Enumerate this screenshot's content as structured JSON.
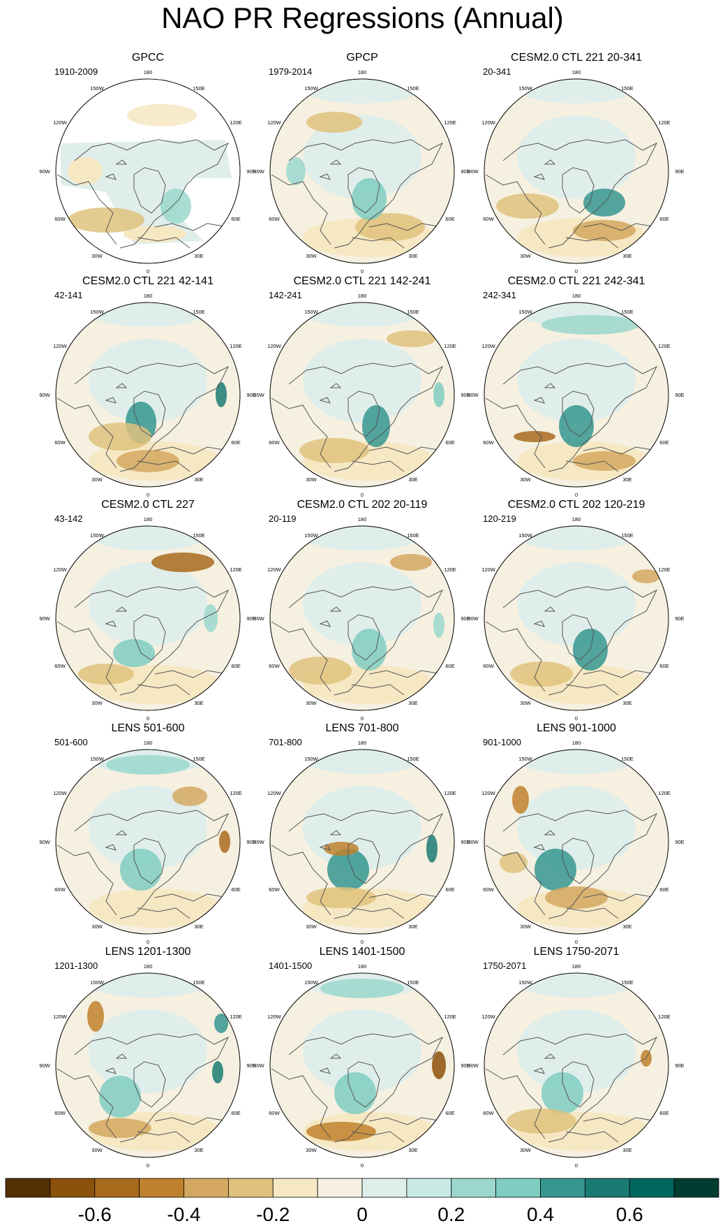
{
  "title": "NAO PR Regressions (Annual)",
  "colors": {
    "palette": [
      "#543005",
      "#8c510a",
      "#a86a1d",
      "#bf812d",
      "#d4a862",
      "#dfc27d",
      "#f6e8c3",
      "#f5f0e0",
      "#e0eeeb",
      "#c7eae5",
      "#9bd7cd",
      "#80cdc1",
      "#35978f",
      "#1b7b72",
      "#01665e",
      "#003c30"
    ],
    "land_outline": "#555555",
    "missing": "#ffffff"
  },
  "chart_data": [
    {
      "type": "heatmap",
      "title": "GPCC",
      "period": "1910-2009",
      "projection": "north polar stereographic",
      "lon_labels": [
        "180",
        "150E",
        "120E",
        "90E",
        "60E",
        "30E",
        "0",
        "30W",
        "60W",
        "90W",
        "120W",
        "150W"
      ]
    },
    {
      "type": "heatmap",
      "title": "GPCP",
      "period": "1979-2014",
      "projection": "north polar stereographic",
      "lon_labels": [
        "180",
        "150E",
        "120E",
        "90E",
        "60E",
        "30E",
        "0",
        "30W",
        "60W",
        "90W",
        "120W",
        "150W"
      ]
    },
    {
      "type": "heatmap",
      "title": "CESM2.0 CTL 221 20-341",
      "period": "20-341",
      "projection": "north polar stereographic",
      "lon_labels": [
        "180",
        "150E",
        "120E",
        "90E",
        "60E",
        "30E",
        "0",
        "30W",
        "60W",
        "90W",
        "120W",
        "150W"
      ]
    },
    {
      "type": "heatmap",
      "title": "CESM2.0 CTL 221 42-141",
      "period": "42-141",
      "projection": "north polar stereographic",
      "lon_labels": [
        "180",
        "150E",
        "120E",
        "90E",
        "60E",
        "30E",
        "0",
        "30W",
        "60W",
        "90W",
        "120W",
        "150W"
      ]
    },
    {
      "type": "heatmap",
      "title": "CESM2.0 CTL 221 142-241",
      "period": "142-241",
      "projection": "north polar stereographic",
      "lon_labels": [
        "180",
        "150E",
        "120E",
        "90E",
        "60E",
        "30E",
        "0",
        "30W",
        "60W",
        "90W",
        "120W",
        "150W"
      ]
    },
    {
      "type": "heatmap",
      "title": "CESM2.0 CTL 221 242-341",
      "period": "242-341",
      "projection": "north polar stereographic",
      "lon_labels": [
        "180",
        "150E",
        "120E",
        "90E",
        "60E",
        "30E",
        "0",
        "30W",
        "60W",
        "90W",
        "120W",
        "150W"
      ]
    },
    {
      "type": "heatmap",
      "title": "CESM2.0 CTL 227",
      "period": "43-142",
      "projection": "north polar stereographic",
      "lon_labels": [
        "180",
        "150E",
        "120E",
        "90E",
        "60E",
        "30E",
        "0",
        "30W",
        "60W",
        "90W",
        "120W",
        "150W"
      ]
    },
    {
      "type": "heatmap",
      "title": "CESM2.0 CTL 202 20-119",
      "period": "20-119",
      "projection": "north polar stereographic",
      "lon_labels": [
        "180",
        "150E",
        "120E",
        "90E",
        "60E",
        "30E",
        "0",
        "30W",
        "60W",
        "90W",
        "120W",
        "150W"
      ]
    },
    {
      "type": "heatmap",
      "title": "CESM2.0 CTL 202 120-219",
      "period": "120-219",
      "projection": "north polar stereographic",
      "lon_labels": [
        "180",
        "150E",
        "120E",
        "90E",
        "60E",
        "30E",
        "0",
        "30W",
        "60W",
        "90W",
        "120W",
        "150W"
      ]
    },
    {
      "type": "heatmap",
      "title": "LENS 501-600",
      "period": "501-600",
      "projection": "north polar stereographic",
      "lon_labels": [
        "180",
        "150E",
        "120E",
        "90E",
        "60E",
        "30E",
        "0",
        "30W",
        "60W",
        "90W",
        "120W",
        "150W"
      ]
    },
    {
      "type": "heatmap",
      "title": "LENS 701-800",
      "period": "701-800",
      "projection": "north polar stereographic",
      "lon_labels": [
        "180",
        "150E",
        "120E",
        "90E",
        "60E",
        "30E",
        "0",
        "30W",
        "60W",
        "90W",
        "120W",
        "150W"
      ]
    },
    {
      "type": "heatmap",
      "title": "LENS 901-1000",
      "period": "901-1000",
      "projection": "north polar stereographic",
      "lon_labels": [
        "180",
        "150E",
        "120E",
        "90E",
        "60E",
        "30E",
        "0",
        "30W",
        "60W",
        "90W",
        "120W",
        "150W"
      ]
    },
    {
      "type": "heatmap",
      "title": "LENS 1201-1300",
      "period": "1201-1300",
      "projection": "north polar stereographic",
      "lon_labels": [
        "180",
        "150E",
        "120E",
        "90E",
        "60E",
        "30E",
        "0",
        "30W",
        "60W",
        "90W",
        "120W",
        "150W"
      ]
    },
    {
      "type": "heatmap",
      "title": "LENS 1401-1500",
      "period": "1401-1500",
      "projection": "north polar stereographic",
      "lon_labels": [
        "180",
        "150E",
        "120E",
        "90E",
        "60E",
        "30E",
        "0",
        "30W",
        "60W",
        "90W",
        "120W",
        "150W"
      ]
    },
    {
      "type": "heatmap",
      "title": "LENS 1750-2071",
      "period": "1750-2071",
      "projection": "north polar stereographic",
      "lon_labels": [
        "180",
        "150E",
        "120E",
        "90E",
        "60E",
        "30E",
        "0",
        "30W",
        "60W",
        "90W",
        "120W",
        "150W"
      ]
    }
  ],
  "colorbar": {
    "levels": [
      -0.7,
      -0.6,
      -0.5,
      -0.4,
      -0.3,
      -0.2,
      -0.1,
      0,
      0.1,
      0.2,
      0.3,
      0.4,
      0.5,
      0.6,
      0.7
    ],
    "tick_labels": [
      "-0.6",
      "-0.4",
      "-0.2",
      "0",
      "0.2",
      "0.4",
      "0.6"
    ],
    "tick_values": [
      -0.6,
      -0.4,
      -0.2,
      0,
      0.2,
      0.4,
      0.6
    ]
  }
}
